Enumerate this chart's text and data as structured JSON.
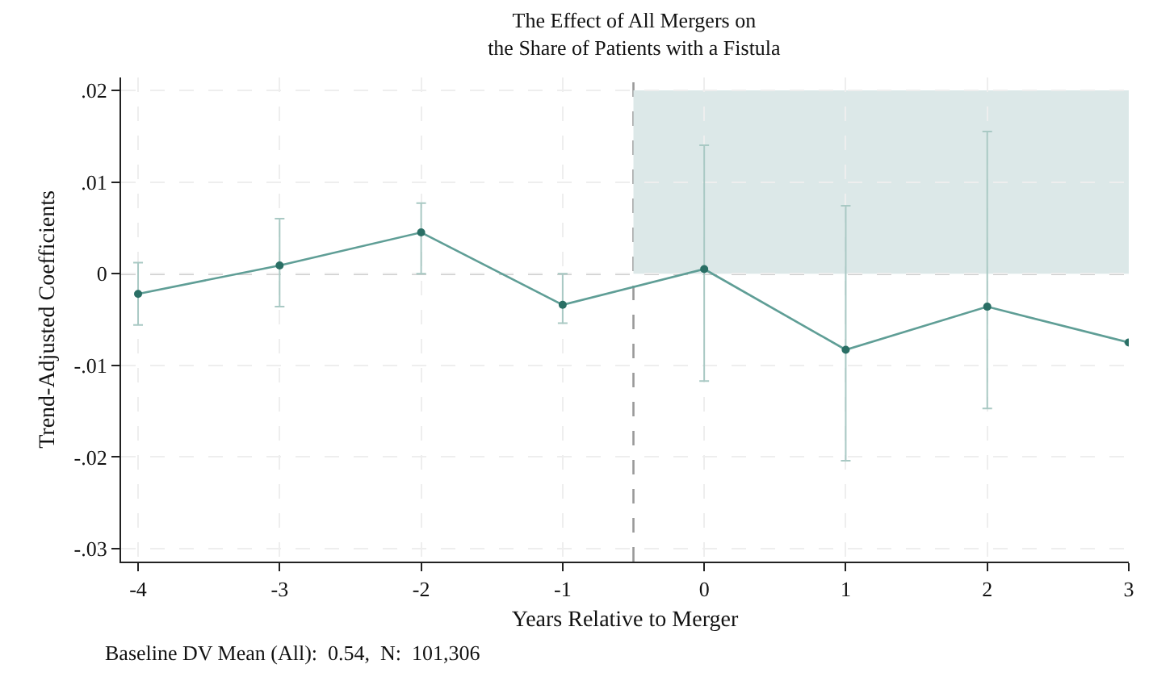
{
  "chart_data": {
    "type": "line",
    "title": "The Effect of All Mergers on\nthe Share of Patients with a Fistula",
    "xlabel": "Years Relative to Merger",
    "ylabel": "Trend-Adjusted Coefficients",
    "annotations": [
      "Baseline DV Mean (All):  0.54,  N:  101,306"
    ],
    "x": [
      -4,
      -3,
      -2,
      -1,
      0,
      1,
      2,
      3
    ],
    "series": [
      {
        "color": "#5f9e96",
        "values": [
          -0.0022,
          0.0009,
          0.0045,
          -0.0034,
          0.0005,
          -0.0083,
          -0.0036,
          -0.0075
        ],
        "errors": [
          [
            -0.0056,
            0.0012
          ],
          [
            -0.0036,
            0.006
          ],
          [
            0.0,
            0.0077
          ],
          [
            -0.0054,
            0.0
          ],
          [
            -0.0117,
            0.014
          ],
          [
            -0.0204,
            0.0074
          ],
          [
            -0.0147,
            0.0155
          ],
          null
        ]
      }
    ],
    "xlim": [
      -4.12,
      3.0
    ],
    "xticks": [
      -4,
      -3,
      -2,
      -1,
      0,
      1,
      2,
      3
    ],
    "ylim": [
      -0.0314,
      0.0214
    ],
    "yticks": [
      {
        "value": 0.02,
        "label": ".02"
      },
      {
        "value": 0.01,
        "label": ".01"
      },
      0,
      {
        "value": -0.01,
        "label": "-.01"
      },
      {
        "value": -0.02,
        "label": "-.02"
      },
      {
        "value": -0.03,
        "label": "-.03"
      }
    ],
    "ref_lines": [
      {
        "axis": "y",
        "value": 0,
        "color": "#999999",
        "line_style": "dashed"
      },
      {
        "axis": "x",
        "value": -0.5,
        "color": "#999999",
        "line_style": "dashed"
      }
    ],
    "bands": [
      {
        "axis": "x",
        "from": -0.5,
        "to": 3.0,
        "color": "#dce8e8"
      }
    ],
    "grid": true,
    "marker": "circle",
    "line_style": "solid",
    "legend": false
  }
}
